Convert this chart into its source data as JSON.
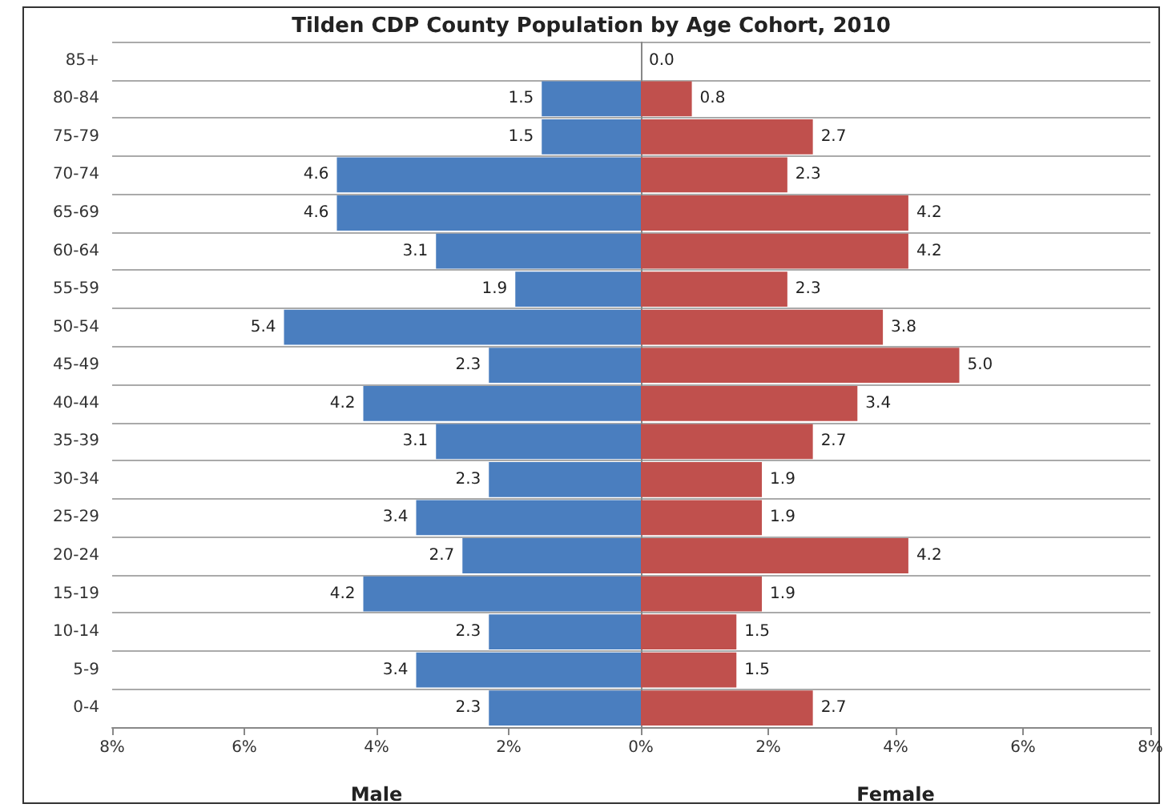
{
  "chart_data": [
    {
      "type": "bar",
      "orientation": "horizontal",
      "title": "Tilden CDP County Population by Age Cohort, 2010",
      "xlabel": "Male",
      "categories": [
        "85+",
        "80-84",
        "75-79",
        "70-74",
        "65-69",
        "60-64",
        "55-59",
        "50-54",
        "45-49",
        "40-44",
        "35-39",
        "30-34",
        "25-29",
        "20-24",
        "15-19",
        "10-14",
        "5-9",
        "0-4"
      ],
      "values": [
        null,
        1.5,
        1.5,
        4.6,
        4.6,
        3.1,
        1.9,
        5.4,
        2.3,
        4.2,
        3.1,
        2.3,
        3.4,
        2.7,
        4.2,
        2.3,
        3.4,
        2.3
      ],
      "color": "#4a7ebf",
      "data_labels": true,
      "xlim": [
        8,
        0
      ],
      "xticks": [
        {
          "value": 8,
          "label": "8%"
        },
        {
          "value": 6,
          "label": "6%"
        },
        {
          "value": 4,
          "label": "4%"
        },
        {
          "value": 2,
          "label": "2%"
        },
        {
          "value": 0,
          "label": "0%"
        }
      ],
      "grid": "y"
    },
    {
      "type": "bar",
      "orientation": "horizontal",
      "xlabel": "Female",
      "categories": [
        null,
        null,
        null,
        null,
        null,
        null,
        null,
        null,
        null,
        null,
        null,
        null,
        null,
        null,
        null,
        null,
        null,
        null
      ],
      "values": [
        0.0,
        0.8,
        2.7,
        2.3,
        4.2,
        4.2,
        2.3,
        3.8,
        5.0,
        3.4,
        2.7,
        1.9,
        1.9,
        4.2,
        1.9,
        1.5,
        1.5,
        2.7
      ],
      "color": "#c0504d",
      "value_labels": [
        "0.0",
        "0.8",
        "2.7",
        "2.3",
        "4.2",
        "4.2",
        "2.3",
        "3.8",
        "5.0",
        "3.4",
        "2.7",
        "1.9",
        "1.9",
        "4.2",
        "1.9",
        "1.5",
        "1.5",
        "2.7"
      ],
      "xlim": [
        0,
        8
      ],
      "xticks": [
        {
          "value": 0,
          "label": null
        },
        {
          "value": 2,
          "label": "2%"
        },
        {
          "value": 4,
          "label": "4%"
        },
        {
          "value": 6,
          "label": "6%"
        },
        {
          "value": 8,
          "label": "8%"
        }
      ],
      "grid": "y",
      "tick_labels": "x"
    }
  ]
}
